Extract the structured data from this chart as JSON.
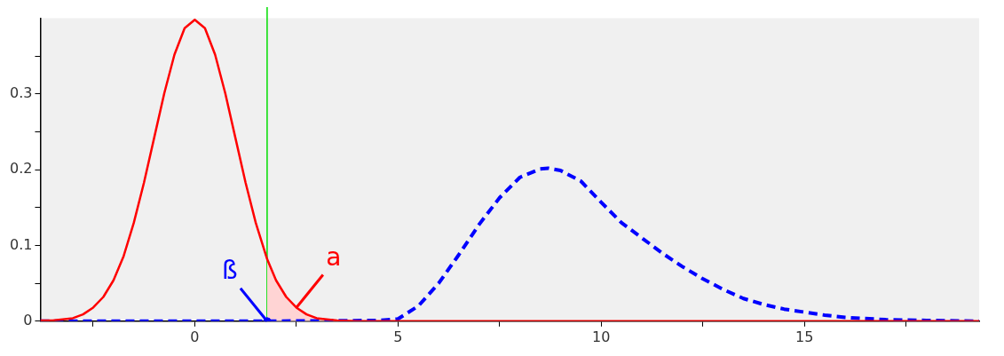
{
  "chart_data": {
    "type": "line",
    "xlim": [
      -3.8,
      19.3
    ],
    "xticks": [
      {
        "value": -2.5,
        "label": null
      },
      0,
      {
        "value": 2.5,
        "label": null
      },
      5,
      {
        "value": 7.5,
        "label": null
      },
      10,
      {
        "value": 12.5,
        "label": null
      },
      15,
      {
        "value": 17.5,
        "label": null
      }
    ],
    "ylim": [
      0,
      0.4
    ],
    "yticks": [
      0,
      {
        "value": 0.05,
        "label": null
      },
      0.1,
      {
        "value": 0.15,
        "label": null
      },
      0.2,
      {
        "value": 0.25,
        "label": null
      },
      0.3,
      {
        "value": 0.35,
        "label": null
      }
    ],
    "series": [
      {
        "color": "#ff0000",
        "line_style": "solid",
        "x": [
          -3.8,
          -3.5,
          -3,
          -2.75,
          -2.5,
          -2.25,
          -2,
          -1.75,
          -1.5,
          -1.25,
          -1,
          -0.75,
          -0.5,
          -0.25,
          0,
          0.25,
          0.5,
          0.75,
          1,
          1.25,
          1.5,
          1.78,
          2,
          2.25,
          2.5,
          2.75,
          3,
          3.5,
          4,
          19.3
        ],
        "values": [
          0.001,
          0.001,
          0.004,
          0.009,
          0.018,
          0.032,
          0.054,
          0.086,
          0.13,
          0.183,
          0.242,
          0.301,
          0.352,
          0.387,
          0.398,
          0.387,
          0.352,
          0.301,
          0.242,
          0.183,
          0.13,
          0.082,
          0.054,
          0.032,
          0.018,
          0.009,
          0.004,
          0.001,
          0,
          0
        ]
      },
      {
        "color": "#0000ff",
        "line_style": "dashed",
        "x": [
          -3.8,
          1.78,
          4.5,
          5,
          5.5,
          6,
          6.5,
          7,
          7.5,
          8,
          8.5,
          8.7,
          9,
          9.5,
          10,
          10.5,
          11,
          11.5,
          12,
          12.5,
          13,
          13.5,
          14,
          14.5,
          15,
          15.5,
          16,
          17,
          18,
          19.3
        ],
        "values": [
          0,
          0,
          0.001,
          0.003,
          0.02,
          0.05,
          0.088,
          0.128,
          0.163,
          0.19,
          0.201,
          0.202,
          0.199,
          0.185,
          0.157,
          0.13,
          0.11,
          0.09,
          0.072,
          0.056,
          0.042,
          0.03,
          0.022,
          0.016,
          0.012,
          0.008,
          0.005,
          0.002,
          0.001,
          0
        ]
      },
      {
        "type": "area",
        "color": "#ffd4d4",
        "x": [
          1.78,
          2,
          2.5,
          3,
          3.5,
          4
        ],
        "values": [
          0.082,
          0.054,
          0.018,
          0.005,
          0.001,
          0
        ]
      },
      {
        "type": "scatter",
        "color": "#0000ff",
        "marker": "circle",
        "x": [
          1.78
        ],
        "values": [
          0
        ]
      }
    ],
    "ref_lines": [
      {
        "axis": "x",
        "value": 1.78,
        "color": "#00dd00"
      }
    ],
    "annotations": [
      {
        "text": "a",
        "x": 2.5,
        "y": 0.018
      },
      {
        "text": "ß",
        "x": 1.78,
        "y": 0
      }
    ]
  }
}
